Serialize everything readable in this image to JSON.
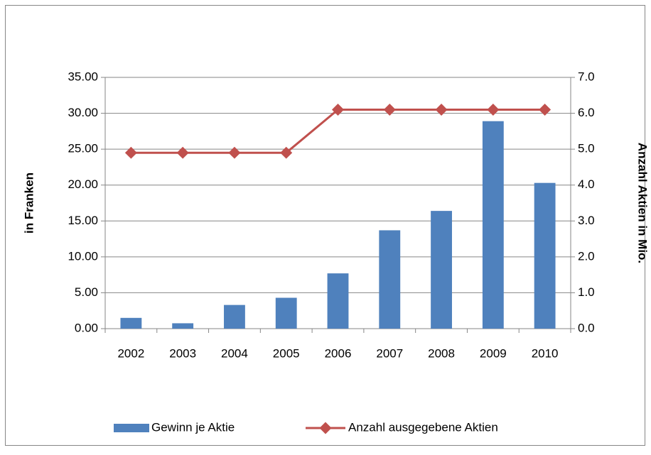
{
  "chart_data": {
    "type": "bar_line",
    "categories": [
      "2002",
      "2003",
      "2004",
      "2005",
      "2006",
      "2007",
      "2008",
      "2009",
      "2010"
    ],
    "series": [
      {
        "name": "Gewinn je Aktie",
        "color": "#4f81bd",
        "type": "bar",
        "values": [
          1.5,
          0.75,
          3.3,
          4.3,
          7.7,
          13.7,
          16.4,
          28.9,
          20.3
        ]
      },
      {
        "name": "Anzahl ausgegebene Aktien",
        "color": "#c0504d",
        "type": "line",
        "axis": "y2",
        "values": [
          4.9,
          4.9,
          4.9,
          4.9,
          6.1,
          6.1,
          6.1,
          6.1,
          6.1
        ]
      }
    ],
    "ylabel": "in Franken",
    "y2label": "Anzahl Aktien in Mio.",
    "ylim": [
      0,
      35
    ],
    "yticks": [
      {
        "value": 0,
        "label": "0.00"
      },
      {
        "value": 5,
        "label": "5.00"
      },
      {
        "value": 10,
        "label": "10.00"
      },
      {
        "value": 15,
        "label": "15.00"
      },
      {
        "value": 20,
        "label": "20.00"
      },
      {
        "value": 25,
        "label": "25.00"
      },
      {
        "value": 30,
        "label": "30.00"
      },
      {
        "value": 35,
        "label": "35.00"
      }
    ],
    "y2lim": [
      0,
      7
    ],
    "y2ticks": [
      {
        "value": 0,
        "label": "0.0"
      },
      {
        "value": 1,
        "label": "1.0"
      },
      {
        "value": 2,
        "label": "2.0"
      },
      {
        "value": 3,
        "label": "3.0"
      },
      {
        "value": 4,
        "label": "4.0"
      },
      {
        "value": 5,
        "label": "5.0"
      },
      {
        "value": 6,
        "label": "6.0"
      },
      {
        "value": 7,
        "label": "7.0"
      }
    ],
    "grid": true,
    "legend": "bottom"
  }
}
